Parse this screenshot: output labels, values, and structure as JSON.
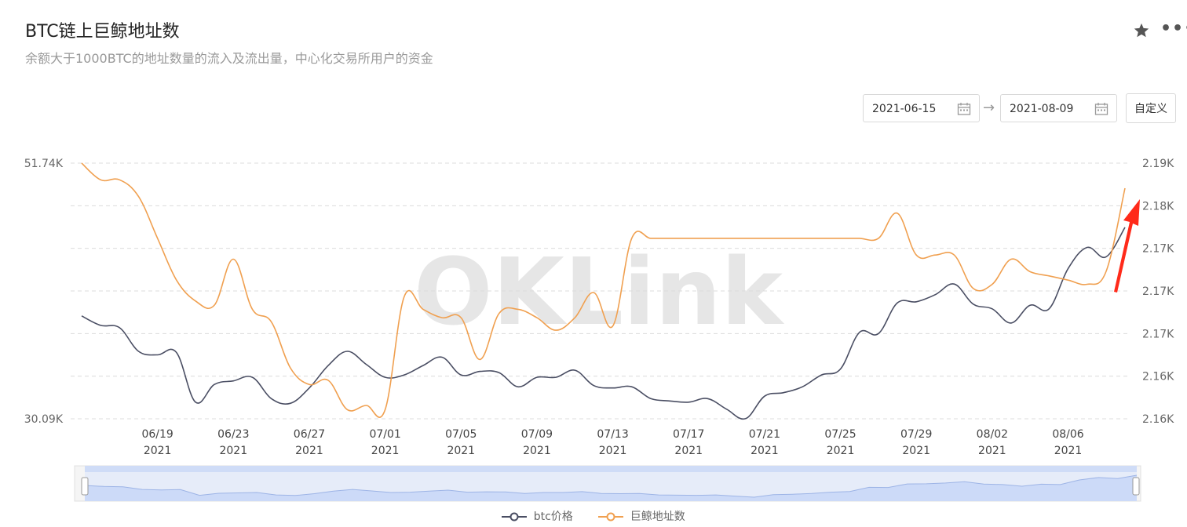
{
  "header": {
    "title": "BTC链上巨鲸地址数",
    "subtitle": "余额大于1000BTC的地址数量的流入及流出量，中心化交易所用户的资金"
  },
  "icons": {
    "favorite": "star-icon",
    "more": "more-icon",
    "calendar": "calendar-icon"
  },
  "date_range": {
    "start": "2021-06-15",
    "end": "2021-08-09",
    "custom_label": "自定义"
  },
  "watermark": "OKLink",
  "colors": {
    "btc": "#4a4e63",
    "whale": "#f0a050",
    "annotation": "#ff2a1a"
  },
  "chart_data": {
    "type": "line",
    "x_ticks": [
      {
        "date": "06/19",
        "year": "2021"
      },
      {
        "date": "06/23",
        "year": "2021"
      },
      {
        "date": "06/27",
        "year": "2021"
      },
      {
        "date": "07/01",
        "year": "2021"
      },
      {
        "date": "07/05",
        "year": "2021"
      },
      {
        "date": "07/09",
        "year": "2021"
      },
      {
        "date": "07/13",
        "year": "2021"
      },
      {
        "date": "07/17",
        "year": "2021"
      },
      {
        "date": "07/21",
        "year": "2021"
      },
      {
        "date": "07/25",
        "year": "2021"
      },
      {
        "date": "07/29",
        "year": "2021"
      },
      {
        "date": "08/02",
        "year": "2021"
      },
      {
        "date": "08/06",
        "year": "2021"
      }
    ],
    "x_start": "06/15",
    "x_end": "08/09",
    "y_left": {
      "min_label": "30.09K",
      "max_label": "51.74K",
      "min": 30090,
      "max": 51740
    },
    "y_right": {
      "ticks": [
        "2.19K",
        "2.18K",
        "2.17K",
        "2.17K",
        "2.17K",
        "2.16K",
        "2.16K"
      ]
    },
    "grid": true,
    "legend_position": "bottom",
    "series": [
      {
        "name": "btc价格",
        "axis": "left",
        "points": [
          [
            "06/15",
            38800
          ],
          [
            "06/16",
            38000
          ],
          [
            "06/17",
            37800
          ],
          [
            "06/18",
            35800
          ],
          [
            "06/19",
            35500
          ],
          [
            "06/20",
            35700
          ],
          [
            "06/21",
            31500
          ],
          [
            "06/22",
            33000
          ],
          [
            "06/23",
            33300
          ],
          [
            "06/24",
            33600
          ],
          [
            "06/25",
            31800
          ],
          [
            "06/26",
            31400
          ],
          [
            "06/27",
            32700
          ],
          [
            "06/28",
            34600
          ],
          [
            "06/29",
            35800
          ],
          [
            "06/30",
            34700
          ],
          [
            "07/01",
            33600
          ],
          [
            "07/02",
            33800
          ],
          [
            "07/03",
            34600
          ],
          [
            "07/04",
            35300
          ],
          [
            "07/05",
            33800
          ],
          [
            "07/06",
            34100
          ],
          [
            "07/07",
            34000
          ],
          [
            "07/08",
            32800
          ],
          [
            "07/09",
            33600
          ],
          [
            "07/10",
            33600
          ],
          [
            "07/11",
            34200
          ],
          [
            "07/12",
            32900
          ],
          [
            "07/13",
            32700
          ],
          [
            "07/14",
            32800
          ],
          [
            "07/15",
            31800
          ],
          [
            "07/16",
            31600
          ],
          [
            "07/17",
            31500
          ],
          [
            "07/18",
            31800
          ],
          [
            "07/19",
            30900
          ],
          [
            "07/20",
            30100
          ],
          [
            "07/21",
            32000
          ],
          [
            "07/22",
            32300
          ],
          [
            "07/23",
            32800
          ],
          [
            "07/24",
            33800
          ],
          [
            "07/25",
            34300
          ],
          [
            "07/26",
            37400
          ],
          [
            "07/27",
            37300
          ],
          [
            "07/28",
            39900
          ],
          [
            "07/29",
            40000
          ],
          [
            "07/30",
            40600
          ],
          [
            "07/31",
            41500
          ],
          [
            "08/01",
            39800
          ],
          [
            "08/02",
            39400
          ],
          [
            "08/03",
            38200
          ],
          [
            "08/04",
            39700
          ],
          [
            "08/05",
            39400
          ],
          [
            "08/06",
            42800
          ],
          [
            "08/07",
            44600
          ],
          [
            "08/08",
            43800
          ],
          [
            "08/09",
            46300
          ]
        ]
      },
      {
        "name": "巨鲸地址数",
        "axis": "right",
        "points": [
          [
            "06/15",
            2.1888
          ],
          [
            "06/16",
            2.1868
          ],
          [
            "06/17",
            2.1868
          ],
          [
            "06/18",
            2.1848
          ],
          [
            "06/19",
            2.1798
          ],
          [
            "06/20",
            2.1748
          ],
          [
            "06/21",
            2.1723
          ],
          [
            "06/22",
            2.1718
          ],
          [
            "06/23",
            2.1773
          ],
          [
            "06/24",
            2.1713
          ],
          [
            "06/25",
            2.1698
          ],
          [
            "06/26",
            2.1643
          ],
          [
            "06/27",
            2.1623
          ],
          [
            "06/28",
            2.1628
          ],
          [
            "06/29",
            2.1593
          ],
          [
            "06/30",
            2.1598
          ],
          [
            "07/01",
            2.1593
          ],
          [
            "07/02",
            2.1728
          ],
          [
            "07/03",
            2.1713
          ],
          [
            "07/04",
            2.1703
          ],
          [
            "07/05",
            2.1703
          ],
          [
            "07/06",
            2.1653
          ],
          [
            "07/07",
            2.1708
          ],
          [
            "07/08",
            2.1713
          ],
          [
            "07/09",
            2.1703
          ],
          [
            "07/10",
            2.1688
          ],
          [
            "07/11",
            2.1703
          ],
          [
            "07/12",
            2.1733
          ],
          [
            "07/13",
            2.1693
          ],
          [
            "07/14",
            2.1798
          ],
          [
            "07/15",
            2.1798
          ],
          [
            "07/16",
            2.1798
          ],
          [
            "07/17",
            2.1798
          ],
          [
            "07/18",
            2.1798
          ],
          [
            "07/19",
            2.1798
          ],
          [
            "07/20",
            2.1798
          ],
          [
            "07/21",
            2.1798
          ],
          [
            "07/22",
            2.1798
          ],
          [
            "07/23",
            2.1798
          ],
          [
            "07/24",
            2.1798
          ],
          [
            "07/25",
            2.1798
          ],
          [
            "07/26",
            2.1798
          ],
          [
            "07/27",
            2.1798
          ],
          [
            "07/28",
            2.1828
          ],
          [
            "07/29",
            2.1778
          ],
          [
            "07/30",
            2.1778
          ],
          [
            "07/31",
            2.1778
          ],
          [
            "08/01",
            2.1738
          ],
          [
            "08/02",
            2.1743
          ],
          [
            "08/03",
            2.1773
          ],
          [
            "08/04",
            2.1758
          ],
          [
            "08/05",
            2.1753
          ],
          [
            "08/06",
            2.1748
          ],
          [
            "08/07",
            2.1743
          ],
          [
            "08/08",
            2.1758
          ],
          [
            "08/09",
            2.1858
          ]
        ]
      }
    ]
  }
}
